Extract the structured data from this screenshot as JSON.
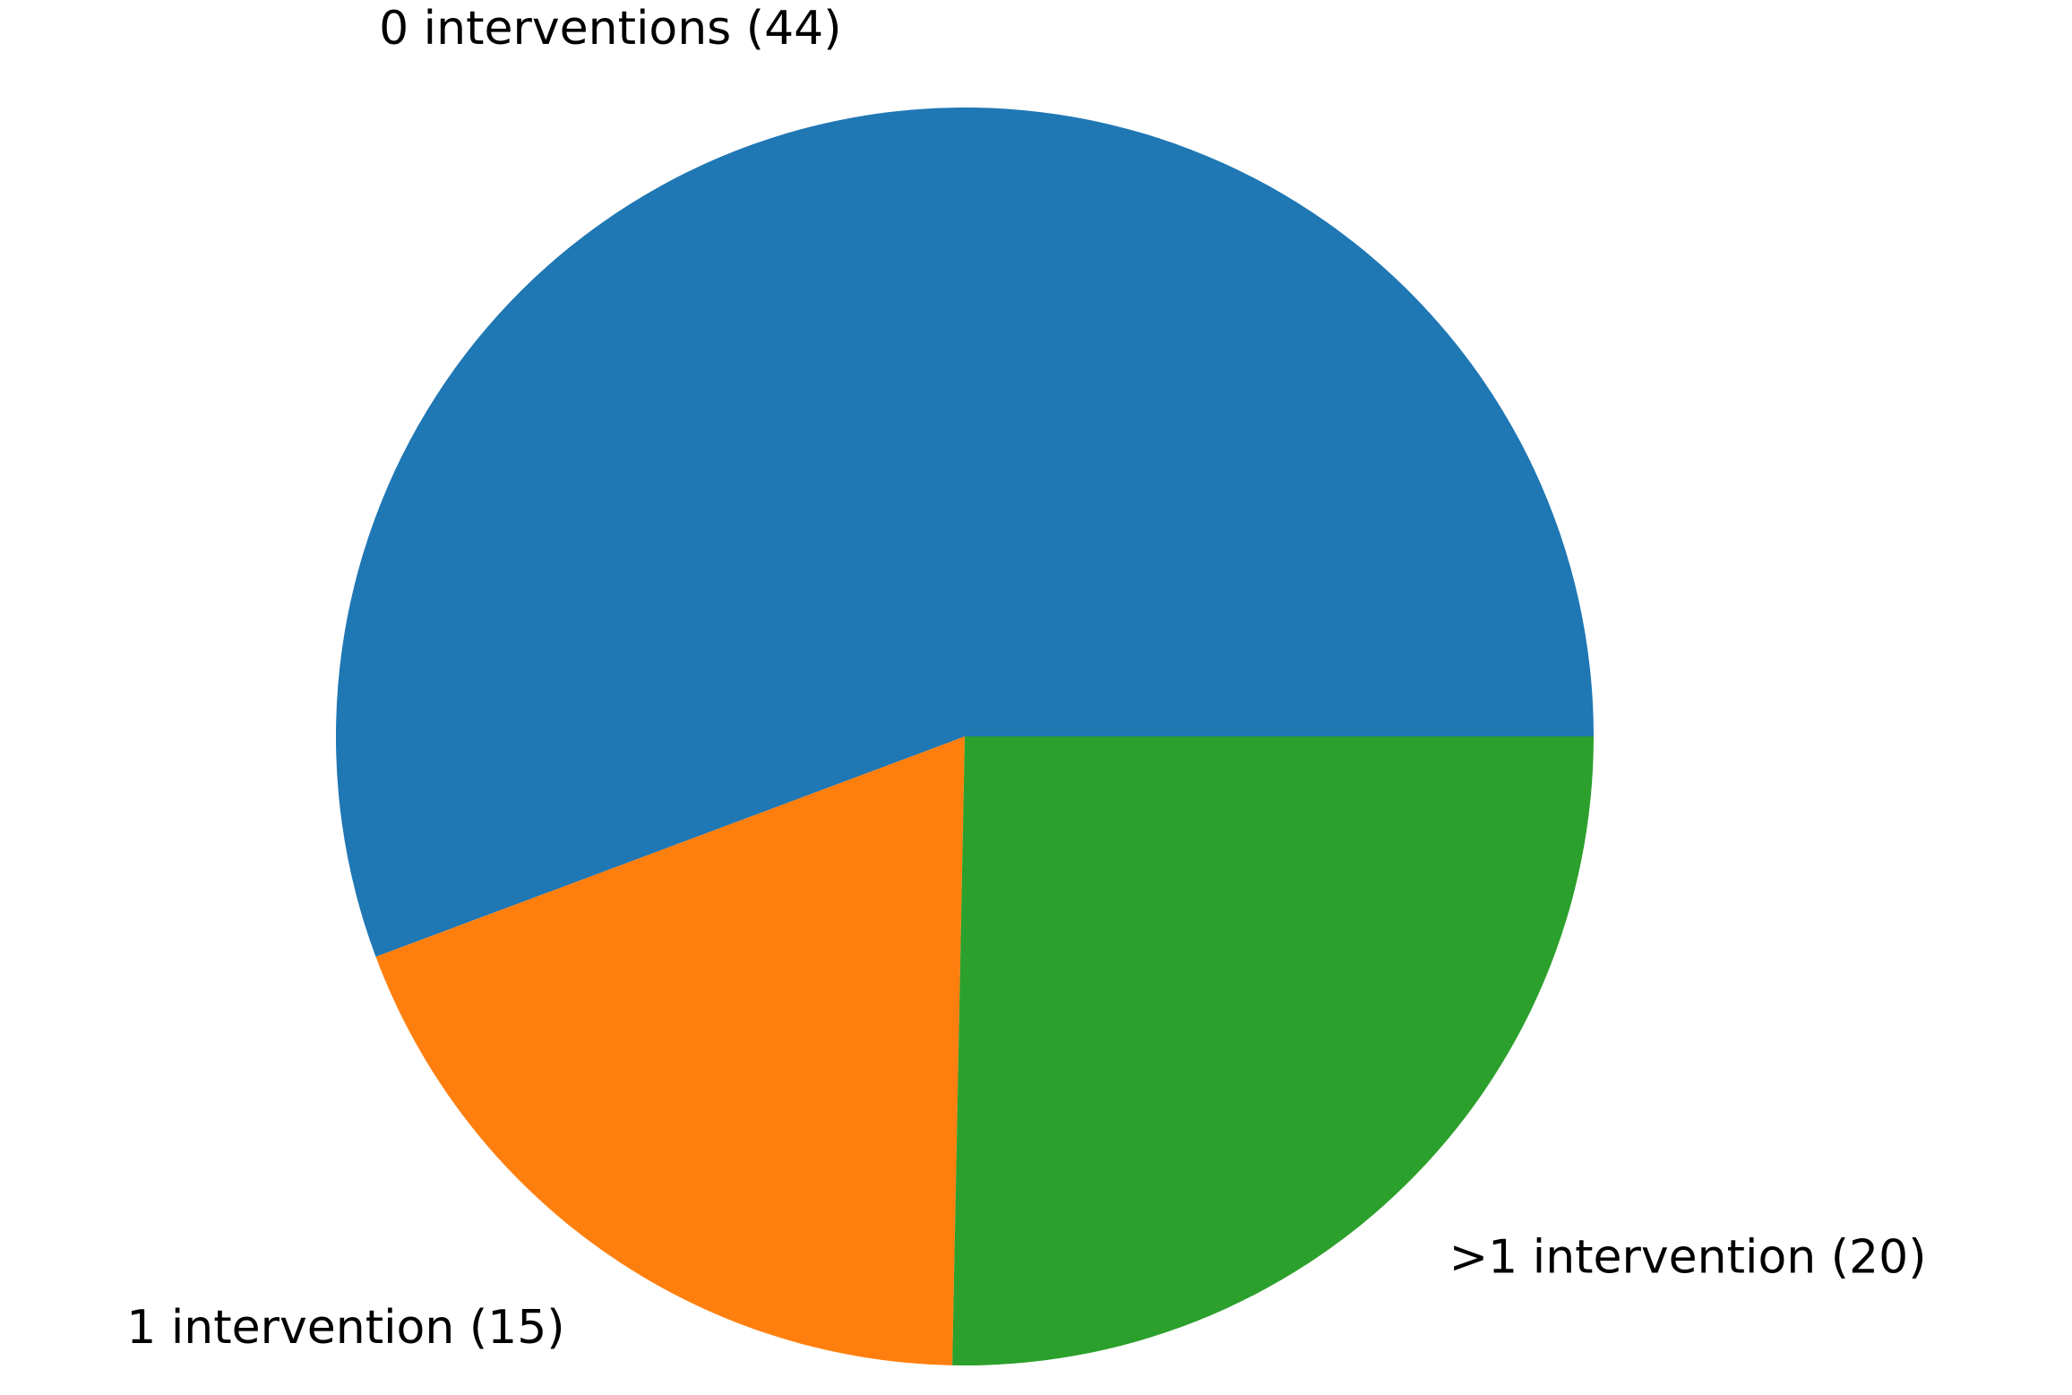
{
  "chart_data": {
    "type": "pie",
    "categories": [
      "0 interventions (44)",
      "1 intervention (15)",
      ">1 intervention (20)"
    ],
    "values": [
      44,
      15,
      20
    ],
    "colors": [
      "#1f77b4",
      "#ff7f0e",
      "#2ca02c"
    ],
    "start_angle": 0,
    "counterclock": true
  }
}
